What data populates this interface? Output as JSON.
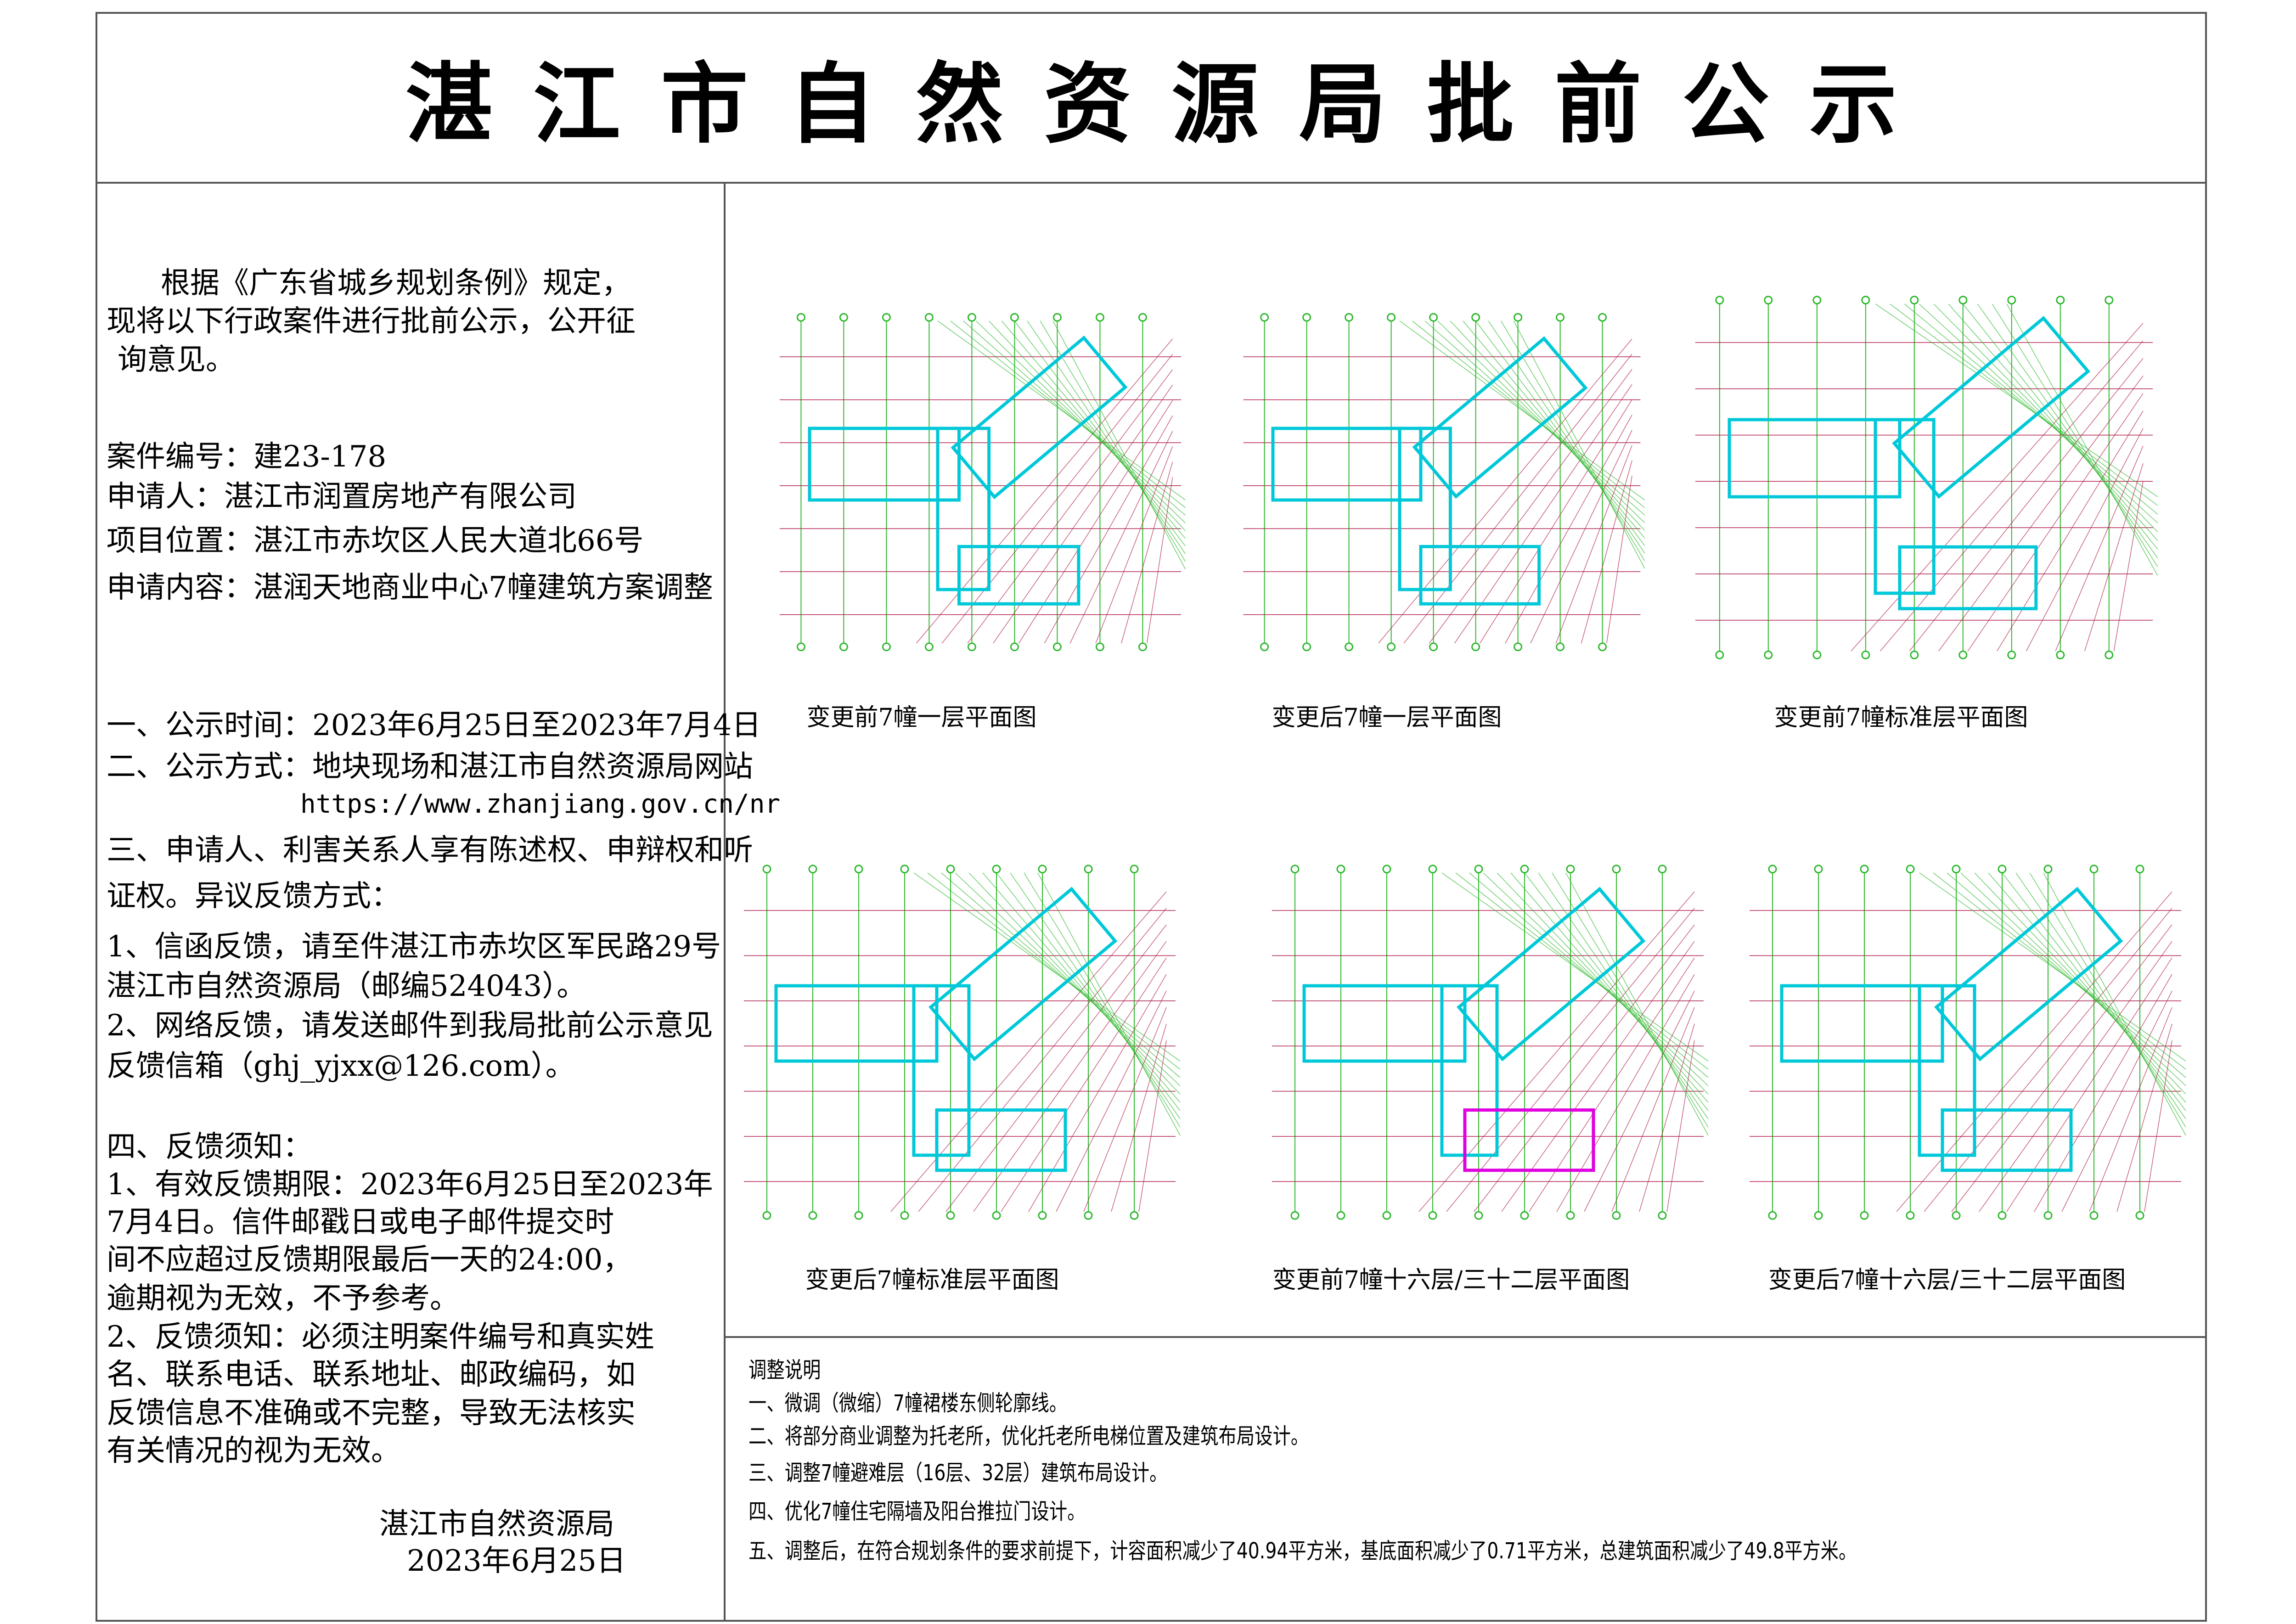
{
  "title": "湛江市自然资源局批前公示",
  "left": {
    "preamble": [
      "根据《广东省城乡规划条例》规定，",
      "现将以下行政案件进行批前公示，公开征",
      "询意见。"
    ],
    "case_no": "案件编号：建23-178",
    "applicant": "申请人：湛江市润置房地产有限公司",
    "location": "项目位置：湛江市赤坎区人民大道北66号",
    "content": "申请内容：湛润天地商业中心7幢建筑方案调整",
    "items": [
      "一、公示时间：2023年6月25日至2023年7月4日",
      "二、公示方式：地块现场和湛江市自然资源局网站",
      "https://www.zhanjiang.gov.cn/nr",
      "三、申请人、利害关系人享有陈述权、申辩权和听",
      "证权。异议反馈方式：",
      "1、信函反馈，请至件湛江市赤坎区军民路29号",
      "湛江市自然资源局（邮编524043）。",
      "2、网络反馈，请发送邮件到我局批前公示意见",
      "反馈信箱（ghj_yjxx@126.com）。",
      "四、反馈须知：",
      "1、有效反馈期限：2023年6月25日至2023年",
      "7月4日。信件邮戳日或电子邮件提交时",
      "间不应超过反馈期限最后一天的24:00，",
      "逾期视为无效，不予参考。",
      "2、反馈须知：必须注明案件编号和真实姓",
      "名、联系电话、联系地址、邮政编码，如",
      "反馈信息不准确或不完整，导致无法核实",
      "有关情况的视为无效。"
    ],
    "signature": "湛江市自然资源局",
    "date": "2023年6月25日"
  },
  "drawings": [
    {
      "caption": "变更前7幢一层平面图"
    },
    {
      "caption": "变更后7幢一层平面图"
    },
    {
      "caption": "变更前7幢标准层平面图"
    },
    {
      "caption": "变更后7幢标准层平面图"
    },
    {
      "caption": "变更前7幢十六层/三十二层平面图"
    },
    {
      "caption": "变更后7幢十六层/三十二层平面图"
    }
  ],
  "notes": {
    "heading": "调整说明",
    "items": [
      "一、微调（微缩）7幢裙楼东侧轮廓线。",
      "二、将部分商业调整为托老所，优化托老所电梯位置及建筑布局设计。",
      "三、调整7幢避难层（16层、32层）建筑布局设计。",
      "四、优化7幢住宅隔墙及阳台推拉门设计。",
      "五、调整后，在符合规划条件的要求前提下，计容面积减少了40.94平方米，基底面积减少了0.71平方米，总建筑面积减少了49.8平方米。"
    ]
  },
  "colors": {
    "grid": "#2db82d",
    "axis_red": "#b0204a",
    "wall_cyan": "#00c8d8",
    "accent_magenta": "#e000e0"
  }
}
